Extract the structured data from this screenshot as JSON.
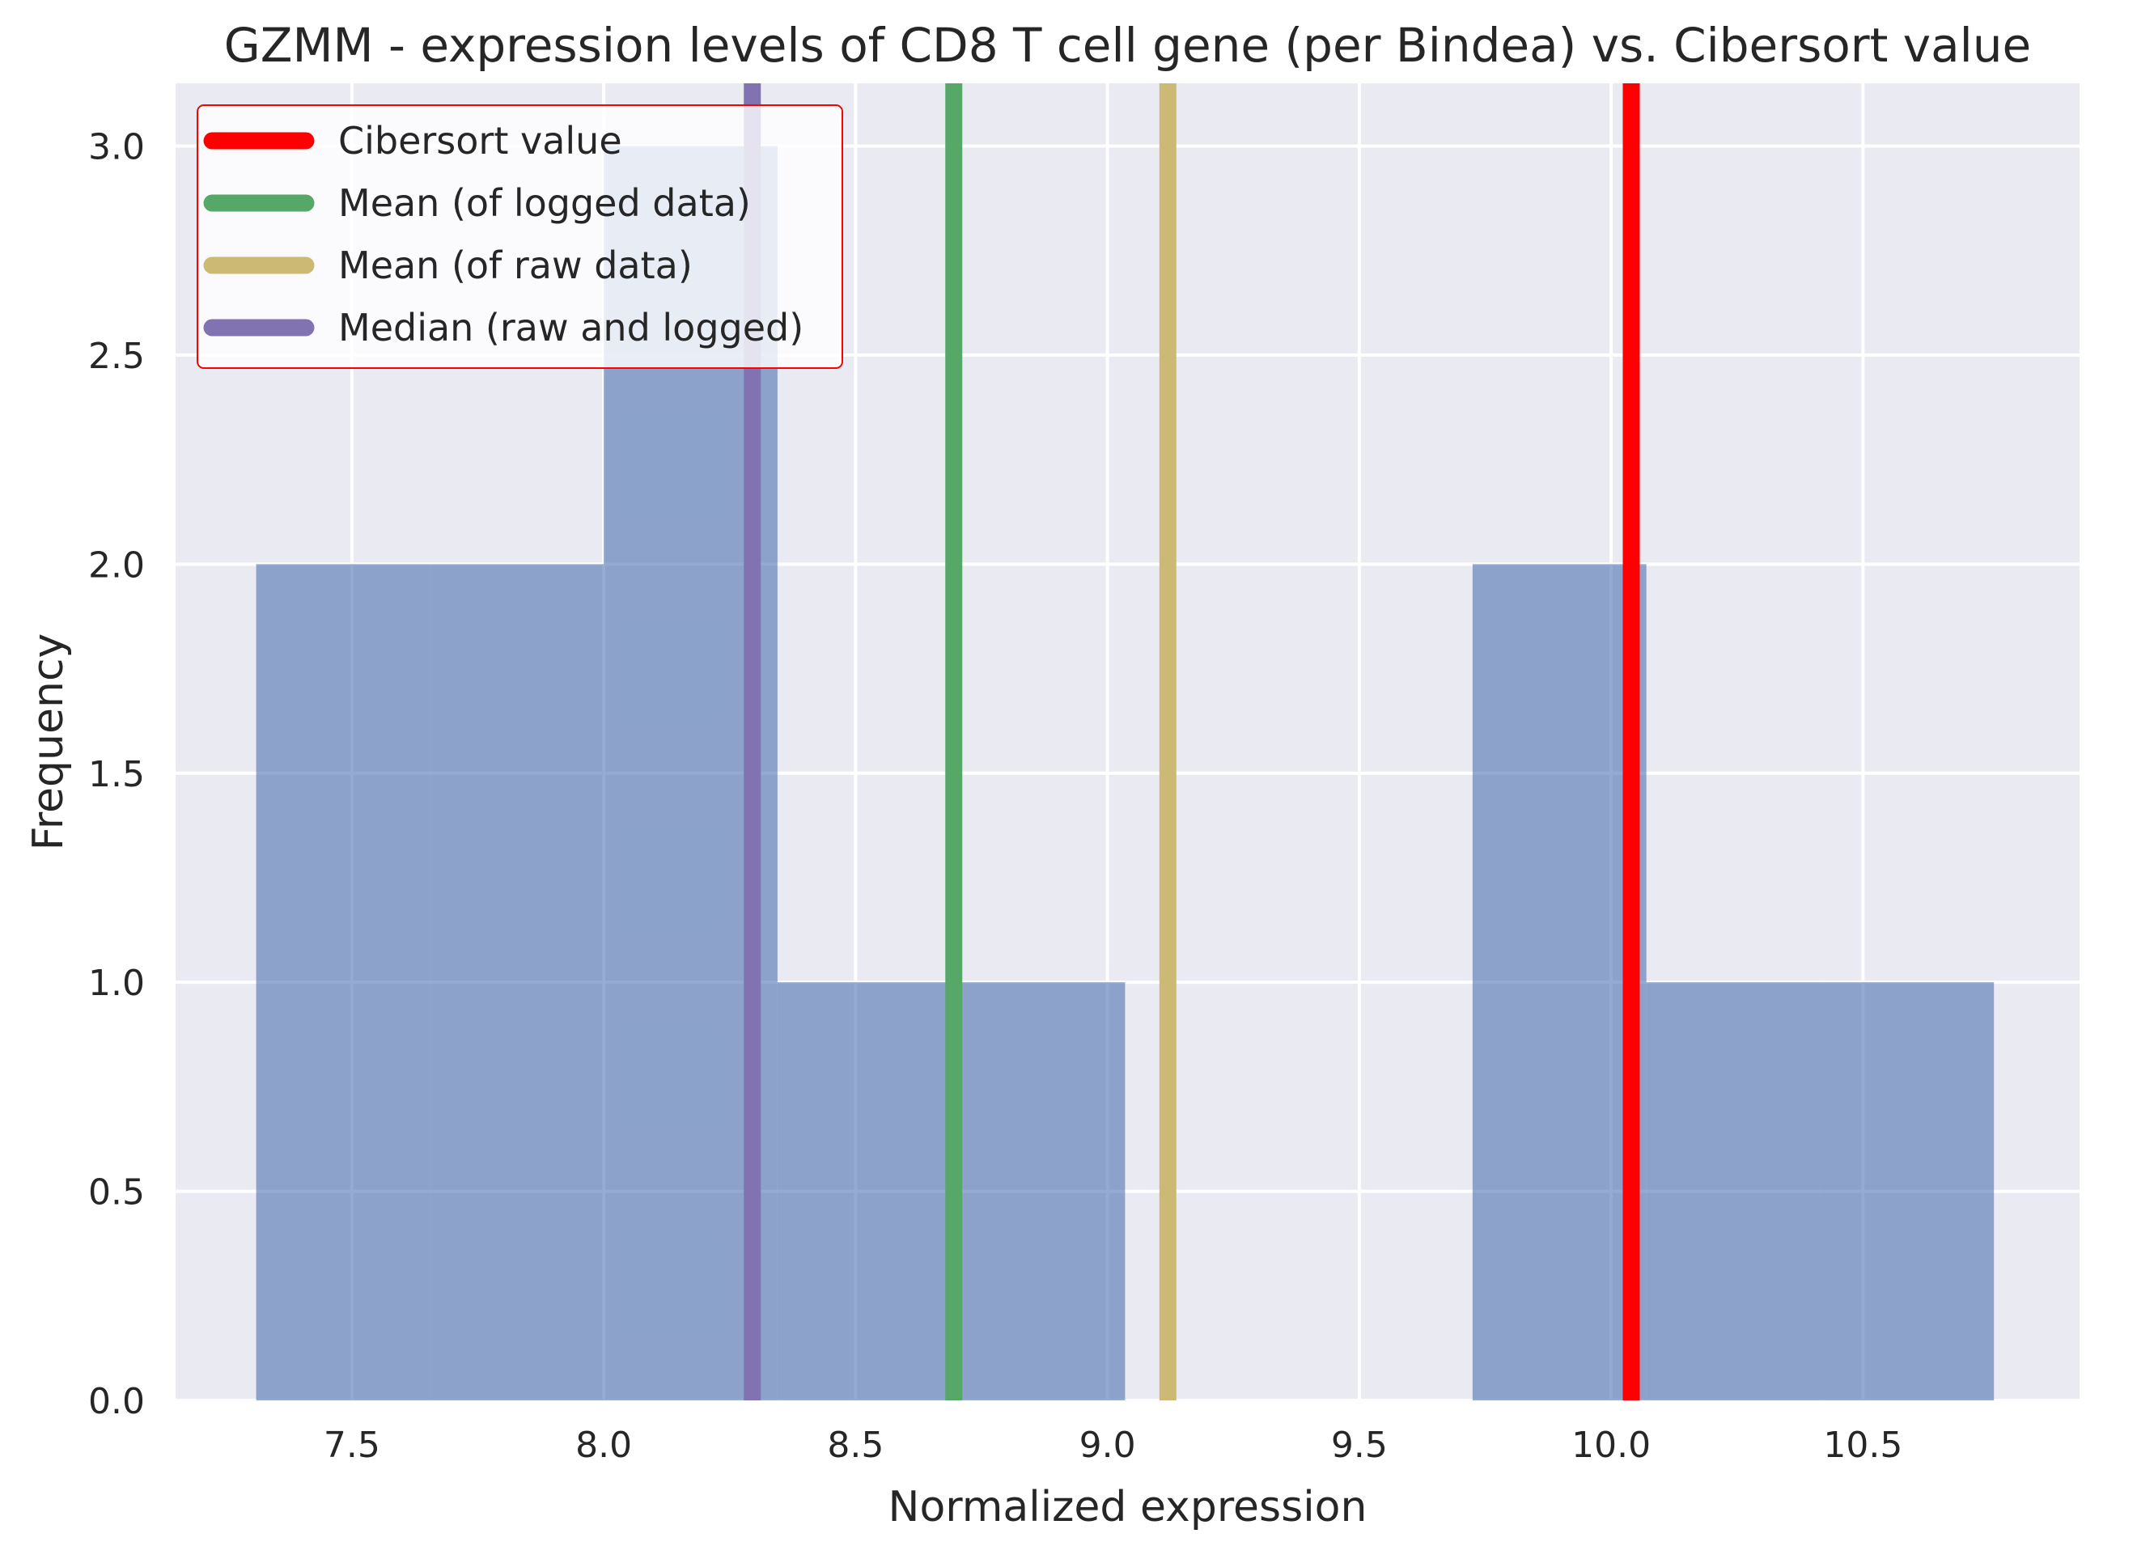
{
  "chart_data": {
    "type": "histogram",
    "title": "GZMM - expression levels of CD8 T cell gene (per Bindea) vs. Cibersort value",
    "xlabel": "Normalized expression",
    "ylabel": "Frequency",
    "xlim": [
      7.15,
      10.93
    ],
    "ylim": [
      0,
      3.15
    ],
    "xticks": [
      7.5,
      8.0,
      8.5,
      9.0,
      9.5,
      10.0,
      10.5
    ],
    "xtick_labels": [
      "7.5",
      "8.0",
      "8.5",
      "9.0",
      "9.5",
      "10.0",
      "10.5"
    ],
    "yticks": [
      0.0,
      0.5,
      1.0,
      1.5,
      2.0,
      2.5,
      3.0
    ],
    "ytick_labels": [
      "0.0",
      "0.5",
      "1.0",
      "1.5",
      "2.0",
      "2.5",
      "3.0"
    ],
    "grid": true,
    "bins": [
      {
        "x0": 7.31,
        "x1": 7.655,
        "count": 2
      },
      {
        "x0": 7.655,
        "x1": 8.0,
        "count": 2
      },
      {
        "x0": 8.0,
        "x1": 8.345,
        "count": 3
      },
      {
        "x0": 8.345,
        "x1": 8.69,
        "count": 1
      },
      {
        "x0": 8.69,
        "x1": 9.035,
        "count": 1
      },
      {
        "x0": 9.035,
        "x1": 9.38,
        "count": 0
      },
      {
        "x0": 9.38,
        "x1": 9.725,
        "count": 0
      },
      {
        "x0": 9.725,
        "x1": 10.07,
        "count": 2
      },
      {
        "x0": 10.07,
        "x1": 10.415,
        "count": 1
      },
      {
        "x0": 10.415,
        "x1": 10.76,
        "count": 1
      }
    ],
    "bar_color": "#4c72b0",
    "vlines": [
      {
        "name": "Cibersort value",
        "x": 10.04,
        "color": "#ff0000"
      },
      {
        "name": "Mean (of logged data)",
        "x": 8.695,
        "color": "#55a868"
      },
      {
        "name": "Mean (of raw data)",
        "x": 9.12,
        "color": "#ccb974"
      },
      {
        "name": "Median (raw and logged)",
        "x": 8.295,
        "color": "#8172b2"
      }
    ],
    "legend": {
      "position": "top-left",
      "entries": [
        "Cibersort value",
        "Mean (of logged data)",
        "Mean (of raw data)",
        "Median (raw and logged)"
      ],
      "border_color": "#ff0000"
    },
    "background_color": "#eaeaf2"
  }
}
